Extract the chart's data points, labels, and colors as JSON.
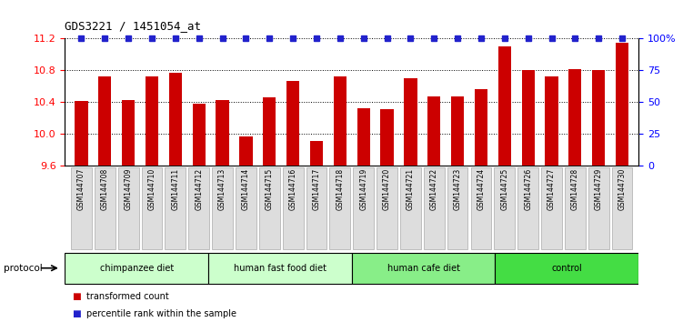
{
  "title": "GDS3221 / 1451054_at",
  "samples": [
    "GSM144707",
    "GSM144708",
    "GSM144709",
    "GSM144710",
    "GSM144711",
    "GSM144712",
    "GSM144713",
    "GSM144714",
    "GSM144715",
    "GSM144716",
    "GSM144717",
    "GSM144718",
    "GSM144719",
    "GSM144720",
    "GSM144721",
    "GSM144722",
    "GSM144723",
    "GSM144724",
    "GSM144725",
    "GSM144726",
    "GSM144727",
    "GSM144728",
    "GSM144729",
    "GSM144730"
  ],
  "bar_values": [
    10.42,
    10.72,
    10.43,
    10.72,
    10.77,
    10.38,
    10.43,
    9.97,
    10.46,
    10.67,
    9.91,
    10.72,
    10.32,
    10.31,
    10.7,
    10.47,
    10.47,
    10.57,
    11.1,
    10.8,
    10.73,
    10.82,
    10.8,
    11.15
  ],
  "bar_color": "#cc0000",
  "percentile_color": "#2222cc",
  "ylim_left": [
    9.6,
    11.2
  ],
  "ylim_right": [
    0,
    100
  ],
  "yticks_left": [
    9.6,
    10.0,
    10.4,
    10.8,
    11.2
  ],
  "yticks_right": [
    0,
    25,
    50,
    75,
    100
  ],
  "ytick_right_labels": [
    "0",
    "25",
    "50",
    "75",
    "100%"
  ],
  "groups": [
    {
      "label": "chimpanzee diet",
      "start": 0,
      "end": 6,
      "color": "#ccffcc"
    },
    {
      "label": "human fast food diet",
      "start": 6,
      "end": 12,
      "color": "#ccffcc"
    },
    {
      "label": "human cafe diet",
      "start": 12,
      "end": 18,
      "color": "#88ee88"
    },
    {
      "label": "control",
      "start": 18,
      "end": 24,
      "color": "#44dd44"
    }
  ],
  "protocol_label": "protocol",
  "legend_items": [
    {
      "label": "transformed count",
      "color": "#cc0000"
    },
    {
      "label": "percentile rank within the sample",
      "color": "#2222cc"
    }
  ],
  "tick_label_bg": "#dddddd",
  "tick_label_border": "#aaaaaa",
  "background": "#ffffff"
}
